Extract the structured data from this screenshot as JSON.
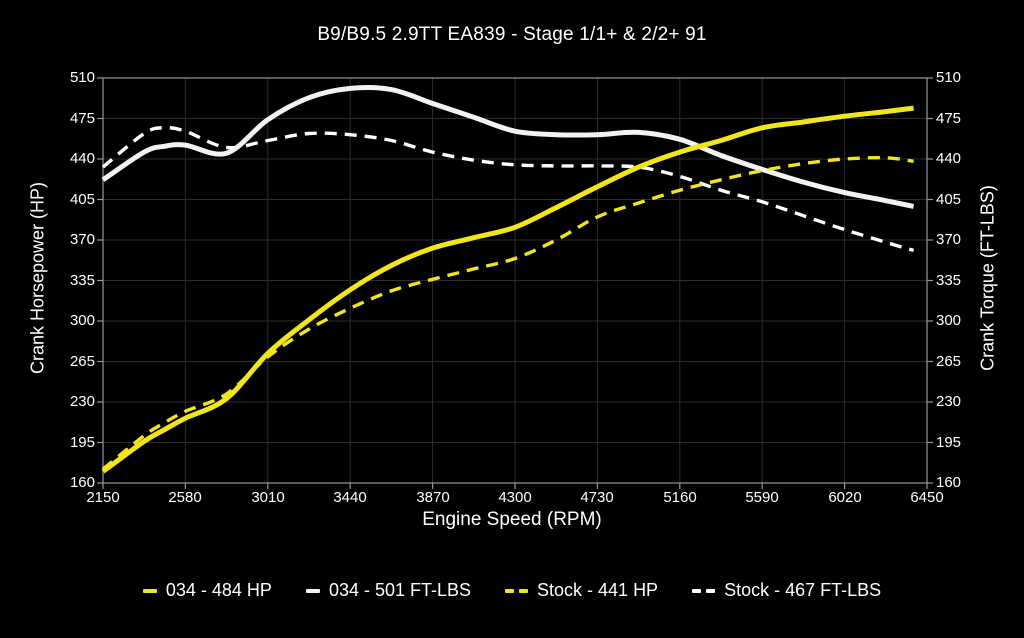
{
  "title": "B9/B9.5 2.9TT EA839 - Stage 1/1+ & 2/2+ 91",
  "colors": {
    "background": "#000000",
    "grid": "#2d2d2d",
    "frame": "#999999",
    "text": "#ffffff",
    "accent_yellow": "#f0e61a",
    "accent_white": "#f2f2f2"
  },
  "chart_data": {
    "type": "line",
    "title": "B9/B9.5 2.9TT EA839 - Stage 1/1+ & 2/2+ 91",
    "xlabel": "Engine Speed (RPM)",
    "ylabel_left": "Crank Horsepower (HP)",
    "ylabel_right": "Crank Torque (FT-LBS)",
    "xlim": [
      2150,
      6450
    ],
    "ylim": [
      160,
      510
    ],
    "x_ticks": [
      2150,
      2580,
      3010,
      3440,
      3870,
      4300,
      4730,
      5160,
      5590,
      6020,
      6450
    ],
    "y_ticks": [
      160,
      195,
      230,
      265,
      300,
      335,
      370,
      405,
      440,
      475,
      510
    ],
    "grid": true,
    "legend_position": "bottom",
    "x": [
      2150,
      2365,
      2470,
      2580,
      2795,
      3010,
      3225,
      3440,
      3655,
      3870,
      4085,
      4300,
      4515,
      4730,
      4945,
      5160,
      5375,
      5590,
      5805,
      6020,
      6235,
      6380
    ],
    "series": [
      {
        "name": "034 - 484 HP",
        "color": "#f0e61a",
        "dashed": false,
        "peak": 484,
        "values": [
          170,
          196,
          206,
          216,
          233,
          272,
          301,
          327,
          348,
          363,
          372,
          381,
          398,
          416,
          433,
          446,
          456,
          467,
          472,
          477,
          481,
          484
        ]
      },
      {
        "name": "034 - 501 FT-LBS",
        "color": "#f2f2f2",
        "dashed": false,
        "peak": 501,
        "values": [
          422,
          446,
          451,
          452,
          445,
          474,
          493,
          501,
          500,
          488,
          476,
          464,
          461,
          461,
          463,
          457,
          443,
          431,
          420,
          411,
          404,
          399
        ]
      },
      {
        "name": "Stock - 441 HP",
        "color": "#f0e61a",
        "dashed": true,
        "peak": 441,
        "values": [
          172,
          201,
          212,
          222,
          237,
          269,
          293,
          311,
          326,
          336,
          345,
          354,
          370,
          390,
          402,
          413,
          422,
          430,
          436,
          440,
          441,
          438
        ]
      },
      {
        "name": "Stock - 467 FT-LBS",
        "color": "#ffffff",
        "dashed": true,
        "peak": 467,
        "values": [
          433,
          462,
          467,
          464,
          450,
          456,
          462,
          461,
          456,
          446,
          439,
          435,
          434,
          434,
          433,
          425,
          413,
          403,
          391,
          379,
          368,
          361
        ]
      }
    ]
  }
}
